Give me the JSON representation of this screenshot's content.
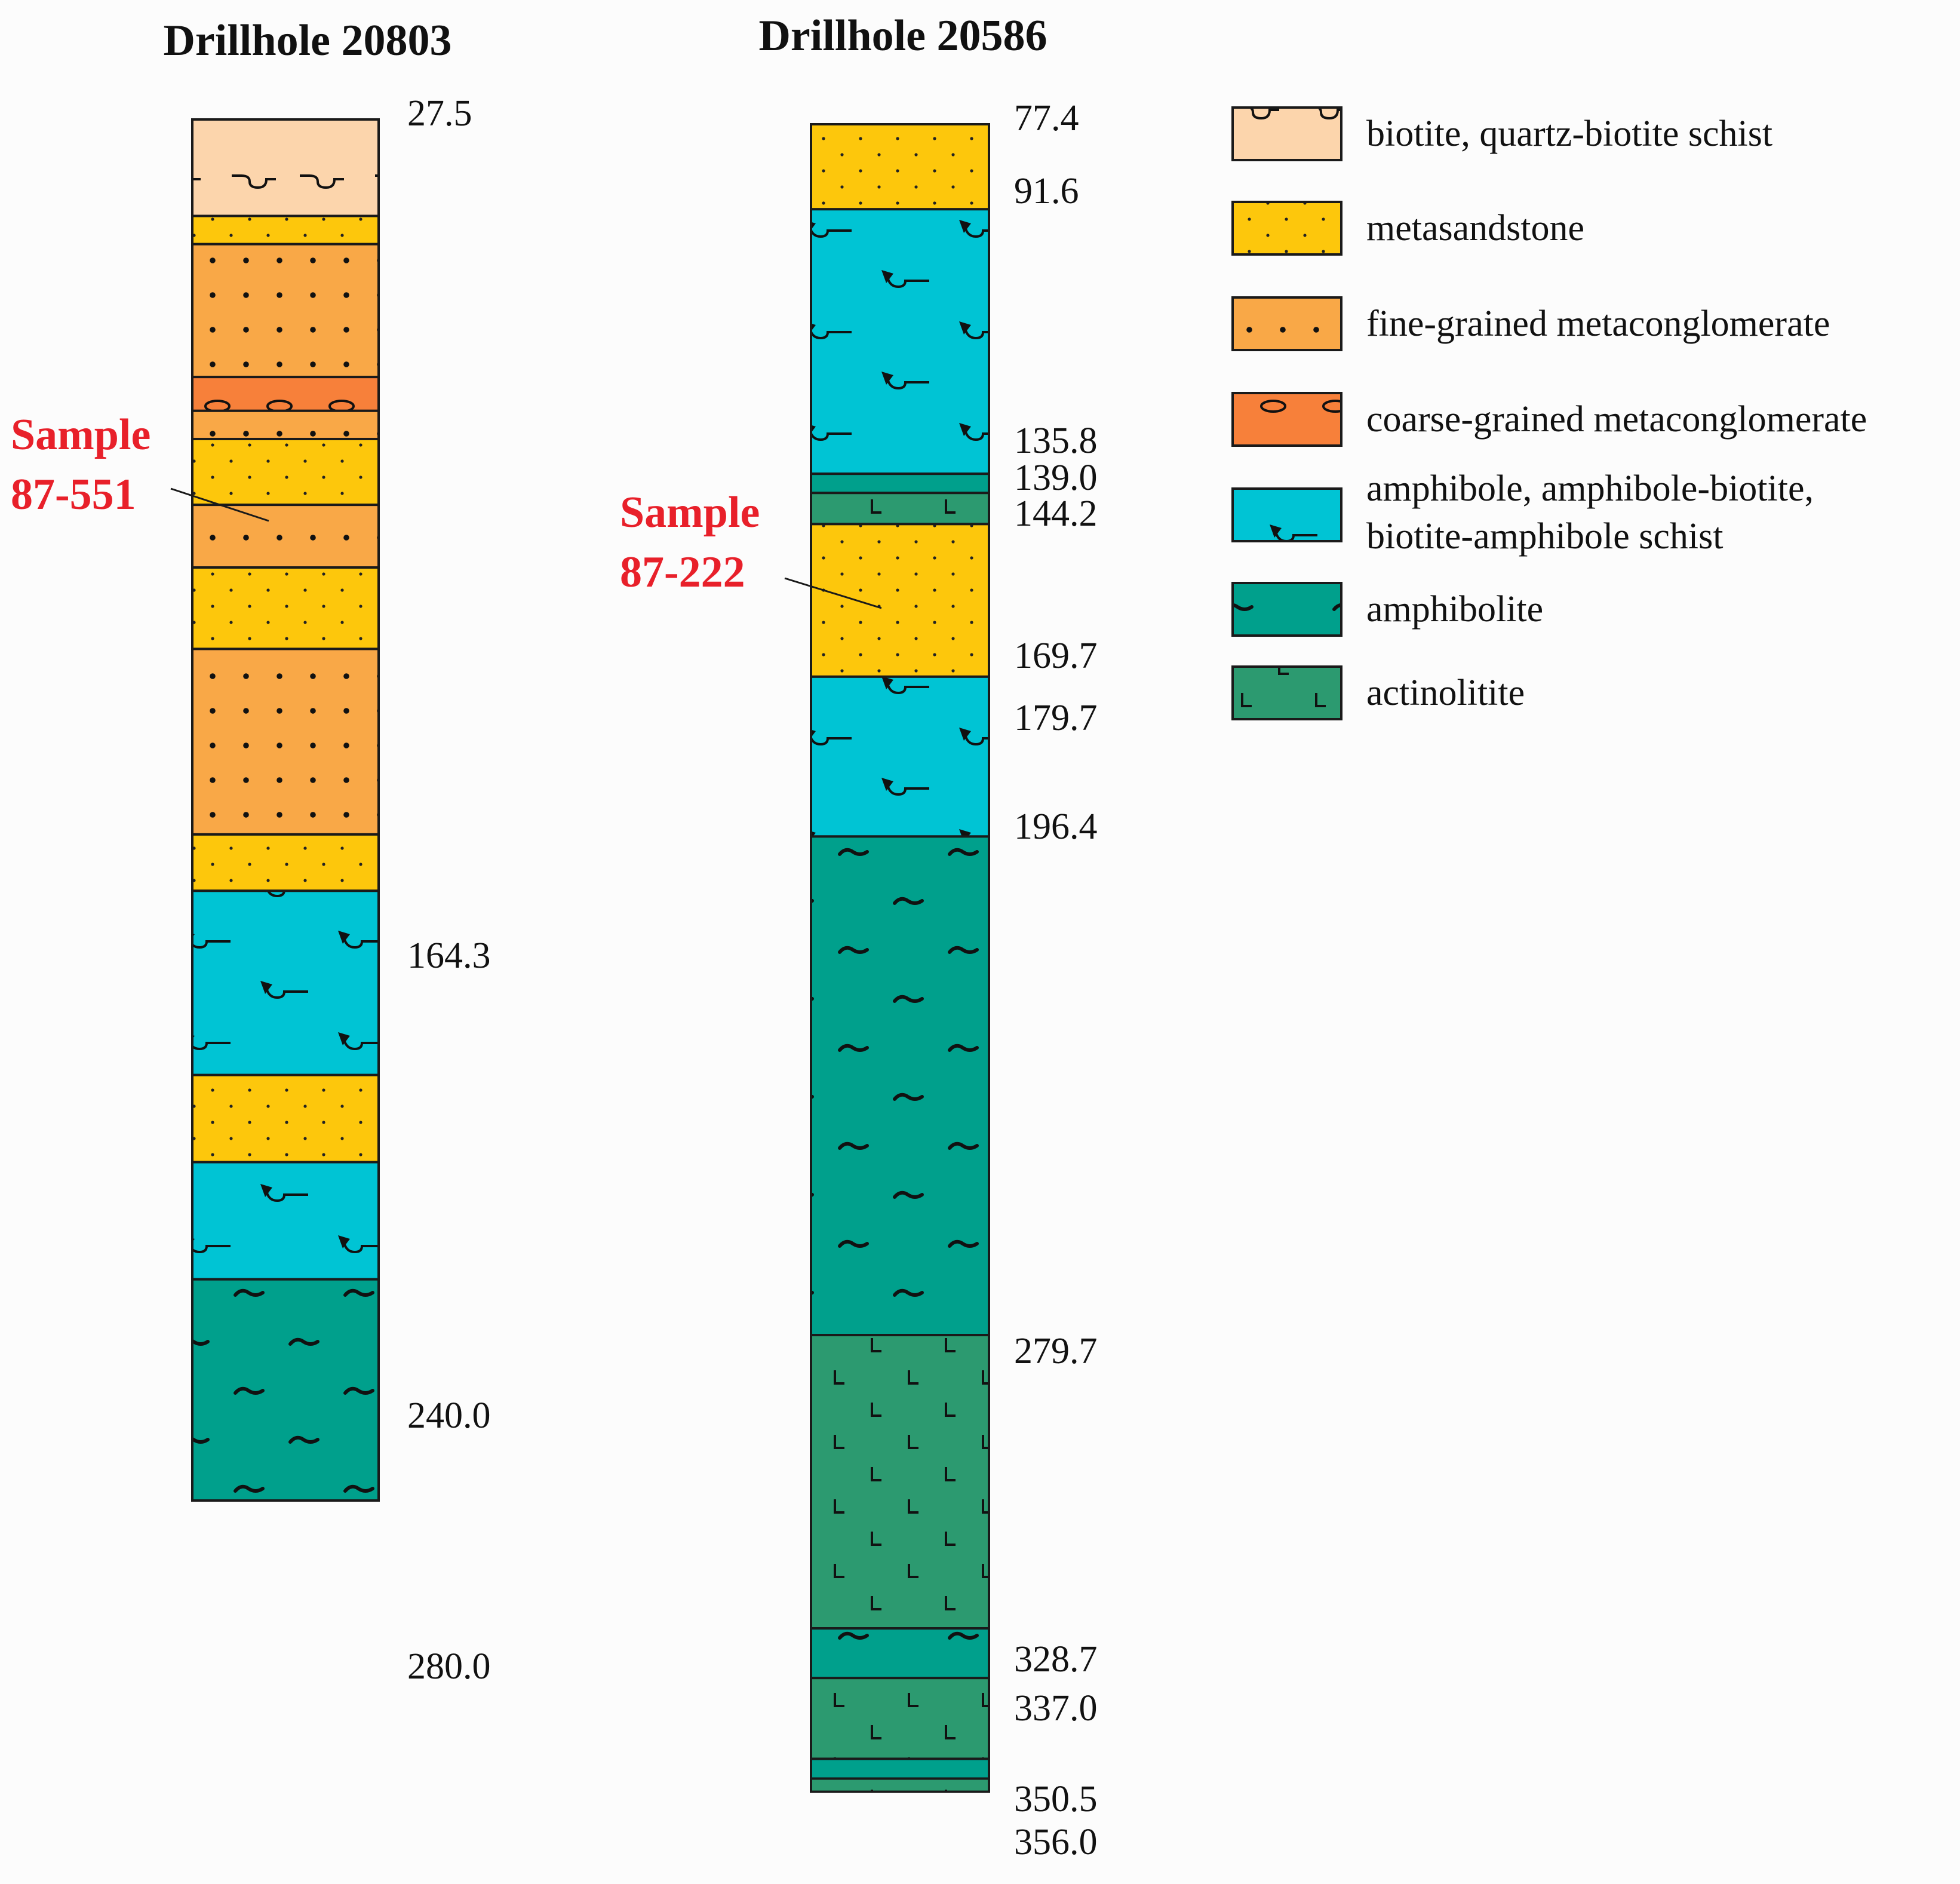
{
  "colors": {
    "biotite_schist": "#fcd5ac",
    "metasandstone": "#fdc70c",
    "fine_conglomerate": "#f9a847",
    "coarse_conglomerate": "#f7803a",
    "amphibole_schist": "#00c4d4",
    "amphibolite": "#00a08c",
    "actinolitite": "#2c9a70",
    "sample_text": "#e8202a",
    "line": "#1a1a1a"
  },
  "legend": [
    {
      "key": "biotite_schist",
      "label_lines": [
        "biotite, quartz-biotite schist"
      ]
    },
    {
      "key": "metasandstone",
      "label_lines": [
        "metasandstone"
      ]
    },
    {
      "key": "fine_conglomerate",
      "label_lines": [
        "fine-grained metaconglomerate"
      ]
    },
    {
      "key": "coarse_conglomerate",
      "label_lines": [
        "coarse-grained metaconglomerate"
      ]
    },
    {
      "key": "amphibole_schist",
      "label_lines": [
        "amphibole, amphibole-biotite,",
        "biotite-amphibole schist"
      ]
    },
    {
      "key": "amphibolite",
      "label_lines": [
        "amphibolite"
      ]
    },
    {
      "key": "actinolitite",
      "label_lines": [
        "actinolitite"
      ]
    }
  ],
  "drillholes": [
    {
      "title": "Drillhole 20803",
      "layers": [
        {
          "lith": "biotite_schist",
          "from": 27.5,
          "to": 42.9
        },
        {
          "lith": "metasandstone",
          "from": 42.9,
          "to": 47.4
        },
        {
          "lith": "fine_conglomerate",
          "from": 47.4,
          "to": 68.6
        },
        {
          "lith": "coarse_conglomerate",
          "from": 68.6,
          "to": 74.0
        },
        {
          "lith": "fine_conglomerate",
          "from": 74.0,
          "to": 78.5
        },
        {
          "lith": "metasandstone",
          "from": 78.5,
          "to": 89.0
        },
        {
          "lith": "fine_conglomerate",
          "from": 89.0,
          "to": 99.0
        },
        {
          "lith": "metasandstone",
          "from": 99.0,
          "to": 112.0
        },
        {
          "lith": "fine_conglomerate",
          "from": 112.0,
          "to": 141.6
        },
        {
          "lith": "metasandstone",
          "from": 141.6,
          "to": 150.6
        },
        {
          "lith": "amphibole_schist",
          "from": 150.6,
          "to": 180.0
        },
        {
          "lith": "metasandstone",
          "from": 180.0,
          "to": 193.9
        },
        {
          "lith": "amphibole_schist",
          "from": 193.9,
          "to": 212.6
        },
        {
          "lith": "amphibolite",
          "from": 212.6,
          "to": 247.9
        }
      ],
      "depth_labels": [
        "27.5",
        "164.3",
        "240.0",
        "280.0"
      ],
      "sample": {
        "lines": [
          "Sample",
          "87-551"
        ],
        "depth": 84.0
      }
    },
    {
      "title": "Drillhole 20586",
      "layers": [
        {
          "lith": "metasandstone",
          "from": 77.4,
          "to": 91.6
        },
        {
          "lith": "amphibole_schist",
          "from": 91.6,
          "to": 135.8
        },
        {
          "lith": "amphibolite",
          "from": 135.8,
          "to": 139.0
        },
        {
          "lith": "actinolitite",
          "from": 139.0,
          "to": 144.2
        },
        {
          "lith": "metasandstone",
          "from": 144.2,
          "to": 169.7
        },
        {
          "lith": "amphibole_schist",
          "from": 169.7,
          "to": 196.4
        },
        {
          "lith": "amphibolite",
          "from": 196.4,
          "to": 279.7
        },
        {
          "lith": "actinolitite",
          "from": 279.7,
          "to": 328.7
        },
        {
          "lith": "amphibolite",
          "from": 328.7,
          "to": 337.0
        },
        {
          "lith": "actinolitite",
          "from": 337.0,
          "to": 350.5
        },
        {
          "lith": "amphibolite",
          "from": 350.5,
          "to": 353.8
        },
        {
          "lith": "actinolitite",
          "from": 353.8,
          "to": 356.0
        }
      ],
      "depth_labels": [
        "77.4",
        "91.6",
        "135.8",
        "139.0",
        "144.2",
        "169.7",
        "179.7",
        "196.4",
        "279.7",
        "328.7",
        "337.0",
        "350.5",
        "356.0"
      ],
      "sample": {
        "lines": [
          "Sample",
          "87-222"
        ],
        "depth": 157.0
      }
    }
  ]
}
